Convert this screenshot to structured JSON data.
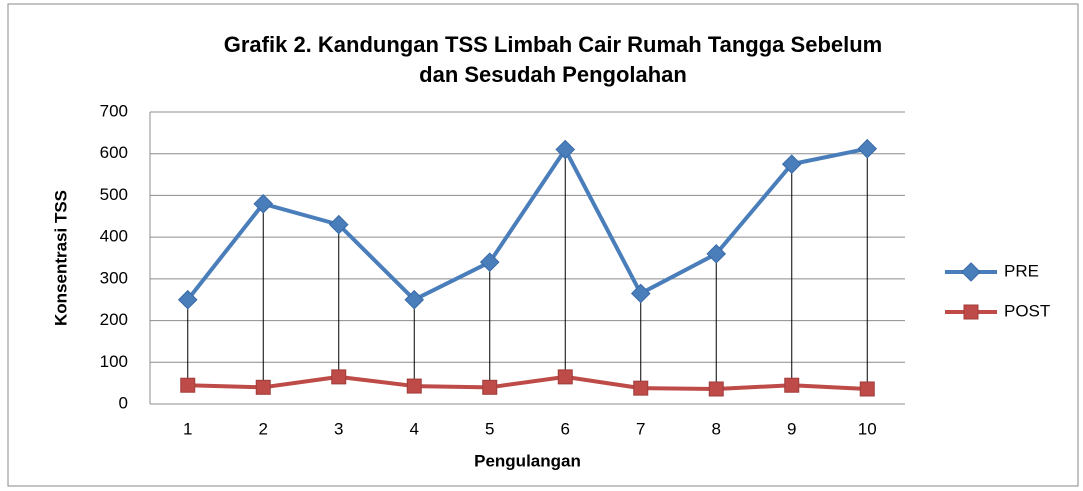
{
  "chart_data": {
    "type": "line",
    "title": "Grafik 2. Kandungan TSS Limbah Cair Rumah Tangga Sebelum\ndan Sesudah Pengolahan",
    "x_label": "Pengulangan",
    "y_label": "Konsentrasi TSS",
    "categories": [
      "1",
      "2",
      "3",
      "4",
      "5",
      "6",
      "7",
      "8",
      "9",
      "10"
    ],
    "series": [
      {
        "name": "PRE",
        "color": "#4a7ebb",
        "marker": "diamond",
        "values": [
          250,
          480,
          430,
          250,
          340,
          610,
          265,
          360,
          575,
          612
        ]
      },
      {
        "name": "POST",
        "color": "#be4b48",
        "marker": "square",
        "values": [
          45,
          40,
          65,
          43,
          40,
          65,
          38,
          36,
          45,
          36
        ]
      }
    ],
    "ylim": [
      0,
      700
    ],
    "yticks": [
      0,
      100,
      200,
      300,
      400,
      500,
      600,
      700
    ],
    "grid": true,
    "drop_lines": true,
    "legend": "right"
  }
}
